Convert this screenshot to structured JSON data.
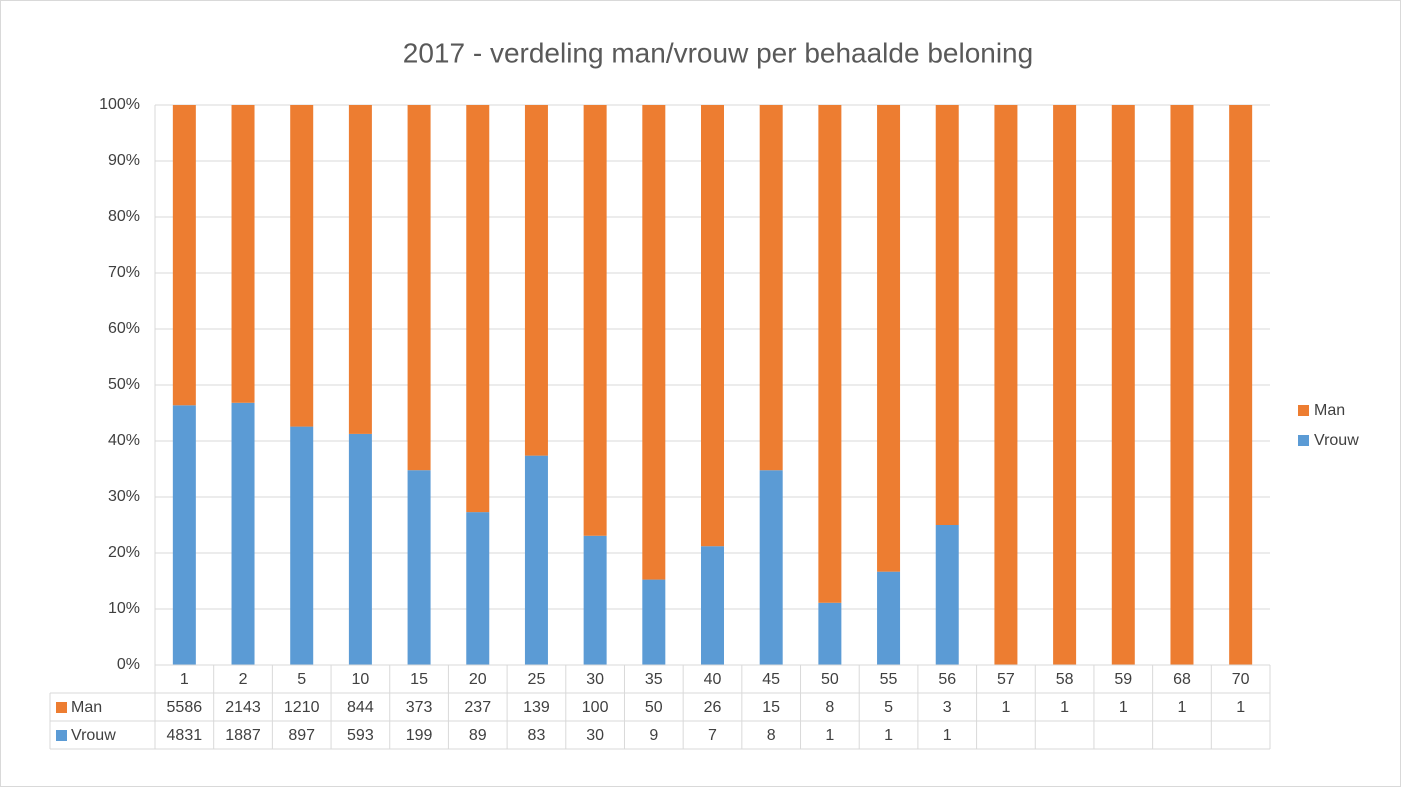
{
  "chart_data": {
    "type": "bar100",
    "title": "2017 - verdeling man/vrouw per behaalde beloning",
    "categories": [
      "1",
      "2",
      "5",
      "10",
      "15",
      "20",
      "25",
      "30",
      "35",
      "40",
      "45",
      "50",
      "55",
      "56",
      "57",
      "58",
      "59",
      "68",
      "70"
    ],
    "series": [
      {
        "name": "Man",
        "color": "#ed7d31",
        "values": [
          5586,
          2143,
          1210,
          844,
          373,
          237,
          139,
          100,
          50,
          26,
          15,
          8,
          5,
          3,
          1,
          1,
          1,
          1,
          1
        ]
      },
      {
        "name": "Vrouw",
        "color": "#5b9bd5",
        "values": [
          4831,
          1887,
          897,
          593,
          199,
          89,
          83,
          30,
          9,
          7,
          8,
          1,
          1,
          1,
          null,
          null,
          null,
          null,
          null
        ]
      }
    ],
    "ylim": [
      0,
      100
    ],
    "yticks": [
      {
        "value": 0,
        "label": "0%"
      },
      {
        "value": 10,
        "label": "10%"
      },
      {
        "value": 20,
        "label": "20%"
      },
      {
        "value": 30,
        "label": "30%"
      },
      {
        "value": 40,
        "label": "40%"
      },
      {
        "value": 50,
        "label": "50%"
      },
      {
        "value": 60,
        "label": "60%"
      },
      {
        "value": 70,
        "label": "70%"
      },
      {
        "value": 80,
        "label": "80%"
      },
      {
        "value": 90,
        "label": "90%"
      },
      {
        "value": 100,
        "label": "100%"
      }
    ],
    "grid": true,
    "legend": "right",
    "data_table": true
  }
}
